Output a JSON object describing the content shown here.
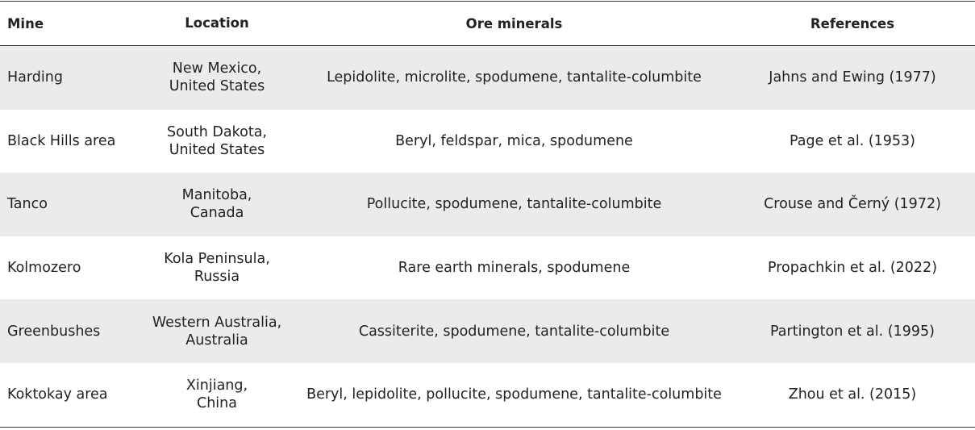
{
  "table": {
    "header": [
      "Mine",
      "Location",
      "Ore minerals",
      "References"
    ],
    "rows": [
      [
        "Harding",
        [
          "New Mexico,",
          "United States"
        ],
        "Lepidolite, microlite, spodumene, tantalite-columbite",
        "Jahns and Ewing (1977)"
      ],
      [
        "Black Hills area",
        [
          "South Dakota,",
          "United States"
        ],
        "Beryl, feldspar, mica, spodumene",
        "Page et al. (1953)"
      ],
      [
        "Tanco",
        [
          "Manitoba,",
          "Canada"
        ],
        "Pollucite, spodumene, tantalite-columbite",
        "Crouse and Černý (1972)"
      ],
      [
        "Kolmozero",
        [
          "Kola Peninsula,",
          "Russia"
        ],
        "Rare earth minerals, spodumene",
        "Propachkin et al. (2022)"
      ],
      [
        "Greenbushes",
        [
          "Western Australia,",
          "Australia"
        ],
        "Cassiterite, spodumene, tantalite-columbite",
        "Partington et al. (1995)"
      ],
      [
        "Koktokay area",
        [
          "Xinjiang,",
          "China"
        ],
        "Beryl, lepidolite, pollucite, spodumene, tantalite-columbite",
        "Zhou et al. (2015)"
      ]
    ]
  }
}
